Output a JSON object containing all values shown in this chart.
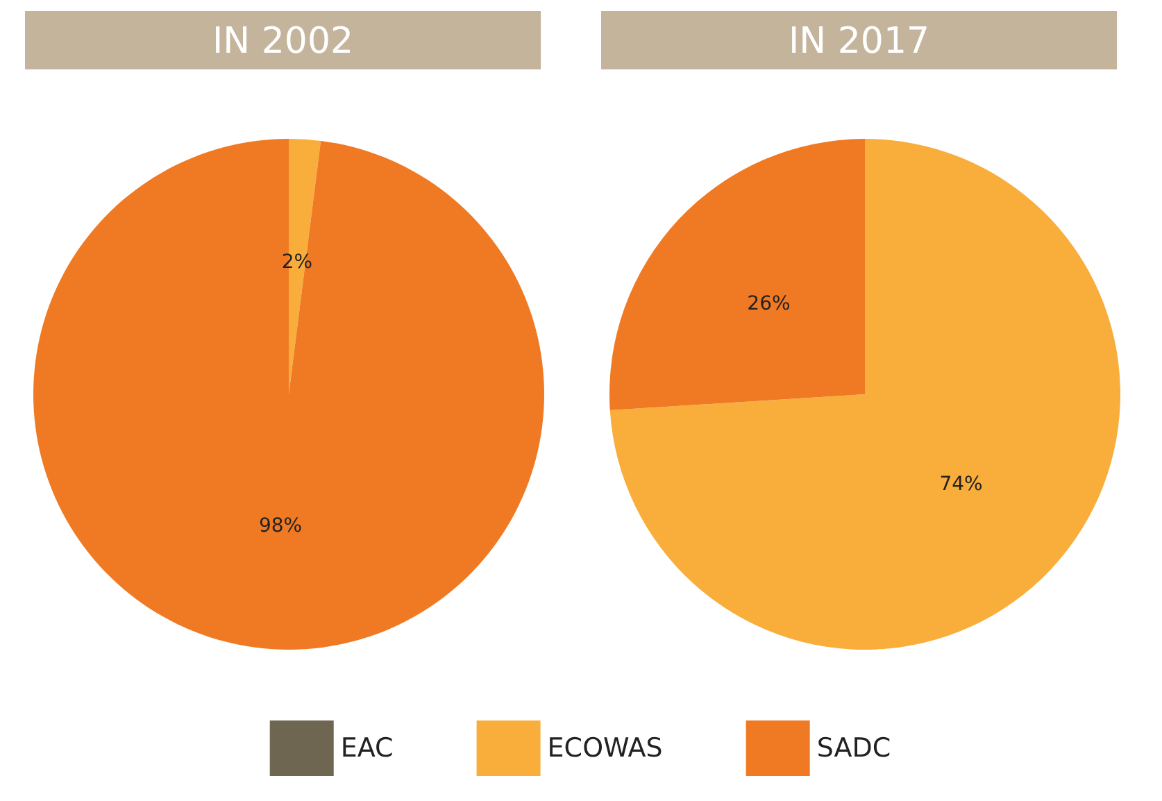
{
  "chart_data": {
    "type": "pie",
    "categories": [
      "EAC",
      "ECOWAS",
      "SADC"
    ],
    "colors": [
      "#6e6650",
      "#f9ae3b",
      "#f07a24"
    ],
    "legend": "bottom",
    "series": [
      {
        "name": "IN 2002",
        "values": [
          0,
          2,
          98
        ],
        "value_labels": [
          null,
          "2%",
          "98%"
        ]
      },
      {
        "name": "IN 2017",
        "values": [
          0,
          74,
          26
        ],
        "value_labels": [
          null,
          "74%",
          "26%"
        ]
      }
    ]
  }
}
